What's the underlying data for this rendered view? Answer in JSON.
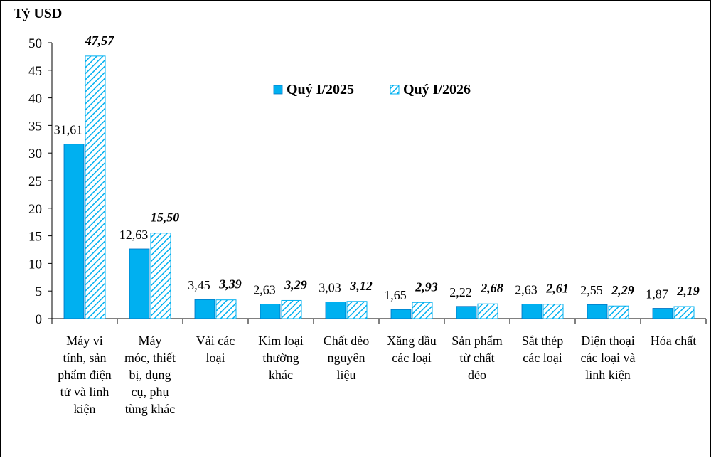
{
  "chart_data": {
    "type": "bar",
    "ylabel": "Tỷ USD",
    "ylim": [
      0,
      50
    ],
    "yticks": [
      0,
      5,
      10,
      15,
      20,
      25,
      30,
      35,
      40,
      45,
      50
    ],
    "legend_position": "top-center",
    "grid": false,
    "categories": [
      "Máy vi tính, sản phẩm điện tử và linh kiện",
      "Máy móc, thiết bị, dụng cụ, phụ tùng khác",
      "Vải các loại",
      "Kim loại thường khác",
      "Chất dẻo nguyên liệu",
      "Xăng dầu các loại",
      "Sản phẩm từ chất dẻo",
      "Sắt thép các loại",
      "Điện thoại các loại và linh kiện",
      "Hóa chất"
    ],
    "category_lines": [
      [
        "Máy vi",
        "tính, sản",
        "phẩm điện",
        "tử và linh",
        "kiện"
      ],
      [
        "Máy",
        "móc, thiết",
        "bị, dụng",
        "cụ, phụ",
        "tùng khác"
      ],
      [
        "Vải các",
        "loại"
      ],
      [
        "Kim loại",
        "thường",
        "khác"
      ],
      [
        "Chất dẻo",
        "nguyên",
        "liệu"
      ],
      [
        "Xăng dầu",
        "các loại"
      ],
      [
        "Sản phẩm",
        "từ chất",
        "dẻo"
      ],
      [
        "Sắt thép",
        "các loại"
      ],
      [
        "Điện thoại",
        "các loại và",
        "linh kiện"
      ],
      [
        "Hóa chất"
      ]
    ],
    "series": [
      {
        "name": "Quý I/2025",
        "values": [
          31.61,
          12.63,
          3.45,
          2.63,
          3.03,
          1.65,
          2.22,
          2.63,
          2.55,
          1.87
        ],
        "labels": [
          "31,61",
          "12,63",
          "3,45",
          "2,63",
          "3,03",
          "1,65",
          "2,22",
          "2,63",
          "2,55",
          "1,87"
        ],
        "color": "#00B0F0",
        "style": "solid"
      },
      {
        "name": "Quý I/2026",
        "values": [
          47.57,
          15.5,
          3.39,
          3.29,
          3.12,
          2.93,
          2.68,
          2.61,
          2.29,
          2.19
        ],
        "labels": [
          "47,57",
          "15,50",
          "3,39",
          "3,29",
          "3,12",
          "2,93",
          "2,68",
          "2,61",
          "2,29",
          "2,19"
        ],
        "color": "#00B0F0",
        "style": "hatched"
      }
    ]
  }
}
